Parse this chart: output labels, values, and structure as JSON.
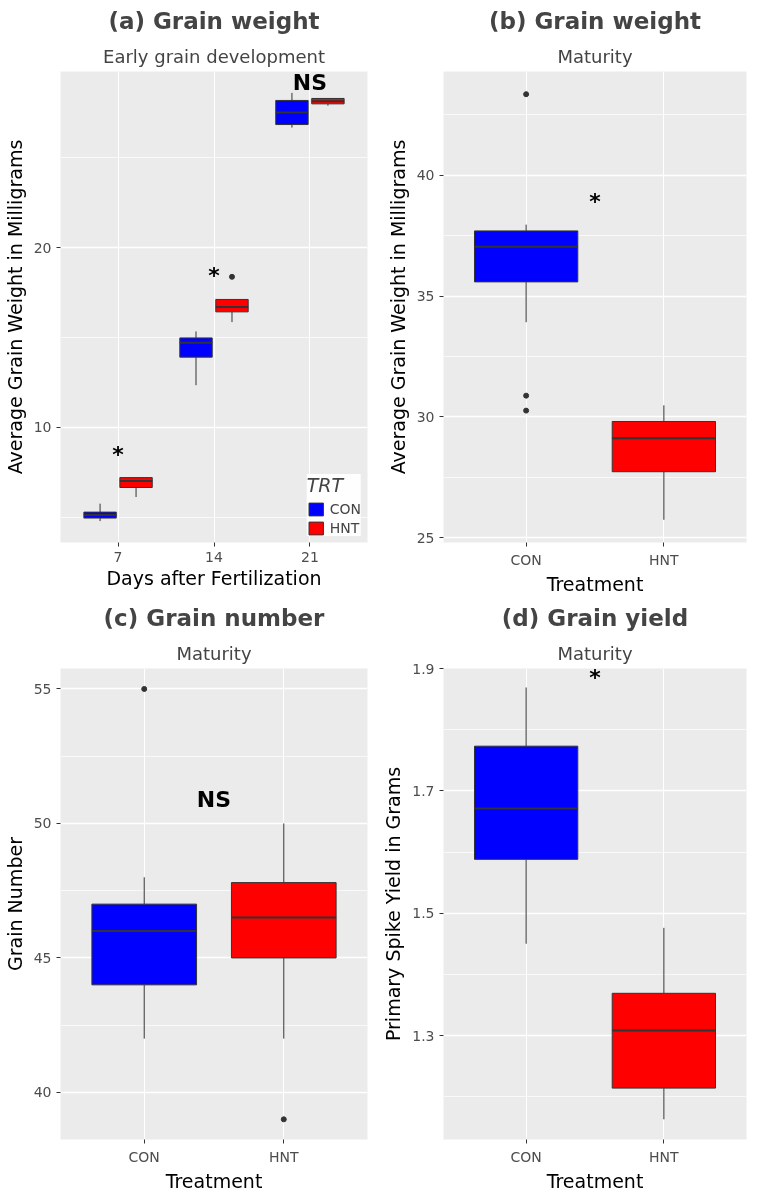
{
  "chart_data": [
    {
      "type": "box",
      "title": "(a) Grain weight",
      "subtitle": "Early grain development",
      "xlabel": "Days after Fertilization",
      "ylabel": "Average Grain Weight in Milligrams",
      "categories": [
        "7",
        "14",
        "21"
      ],
      "ylim": [
        3.6,
        29.8
      ],
      "yticks": [
        10,
        20
      ],
      "grid": true,
      "legend": "bottom right",
      "legend_title": "TRT",
      "series": [
        {
          "name": "CON",
          "color": "#0000ff",
          "boxes": [
            {
              "low": 4.79,
              "q1": 4.96,
              "median": 5.13,
              "q3": 5.29,
              "high": 5.76
            },
            {
              "low": 12.35,
              "q1": 13.91,
              "median": 14.71,
              "q3": 14.98,
              "high": 15.34
            },
            {
              "low": 26.68,
              "q1": 26.85,
              "median": 27.52,
              "q3": 28.19,
              "high": 28.61
            }
          ]
        },
        {
          "name": "HNT",
          "color": "#ff0000",
          "boxes": [
            {
              "low": 6.13,
              "q1": 6.66,
              "median": 7.02,
              "q3": 7.21,
              "high": 7.21
            },
            {
              "low": 15.86,
              "q1": 16.43,
              "median": 16.7,
              "q3": 17.12,
              "high": 17.12,
              "outliers": [
                18.38
              ]
            },
            {
              "low": 27.9,
              "q1": 28.0,
              "median": 28.15,
              "q3": 28.3,
              "high": 28.3
            }
          ]
        }
      ],
      "annotations": [
        "*",
        "*",
        "NS"
      ]
    },
    {
      "type": "box",
      "title": "(b) Grain weight",
      "subtitle": "Maturity",
      "xlabel": "Treatment",
      "ylabel": "Average Grain Weight in Milligrams",
      "categories": [
        "CON",
        "HNT"
      ],
      "colors": [
        "#0000ff",
        "#ff0000"
      ],
      "ylim": [
        24.8,
        44.3
      ],
      "yticks": [
        25,
        30,
        35,
        40
      ],
      "grid": true,
      "boxes": [
        {
          "low": 33.92,
          "q1": 35.59,
          "median": 37.04,
          "q3": 37.7,
          "high": 37.96,
          "outliers": [
            43.36,
            30.88,
            30.26
          ]
        },
        {
          "low": 25.74,
          "q1": 27.73,
          "median": 29.12,
          "q3": 29.81,
          "high": 30.48
        }
      ],
      "annotations": [
        "*"
      ]
    },
    {
      "type": "box",
      "title": "(c) Grain number",
      "subtitle": "Maturity",
      "xlabel": "Treatment",
      "ylabel": "Grain Number",
      "categories": [
        "CON",
        "HNT"
      ],
      "colors": [
        "#0000ff",
        "#ff0000"
      ],
      "ylim": [
        38.25,
        55.76
      ],
      "yticks": [
        40,
        45,
        50,
        55
      ],
      "grid": true,
      "boxes": [
        {
          "low": 42,
          "q1": 44,
          "median": 46,
          "q3": 47,
          "high": 48,
          "outliers": [
            55
          ]
        },
        {
          "low": 42,
          "q1": 45,
          "median": 46.5,
          "q3": 47.8,
          "high": 50,
          "outliers": [
            39
          ]
        }
      ],
      "annotations": [
        "NS"
      ]
    },
    {
      "type": "box",
      "title": "(d) Grain yield",
      "subtitle": "Maturity",
      "xlabel": "Treatment",
      "ylabel": "Primary Spike Yield in Grams",
      "categories": [
        "CON",
        "HNT"
      ],
      "colors": [
        "#0000ff",
        "#ff0000"
      ],
      "ylim": [
        1.13,
        1.9
      ],
      "yticks": [
        1.3,
        1.5,
        1.7,
        1.9
      ],
      "grid": true,
      "boxes": [
        {
          "low": 1.45,
          "q1": 1.588,
          "median": 1.671,
          "q3": 1.773,
          "high": 1.869
        },
        {
          "low": 1.163,
          "q1": 1.214,
          "median": 1.308,
          "q3": 1.369,
          "high": 1.476
        }
      ],
      "annotations": [
        "*"
      ]
    }
  ]
}
